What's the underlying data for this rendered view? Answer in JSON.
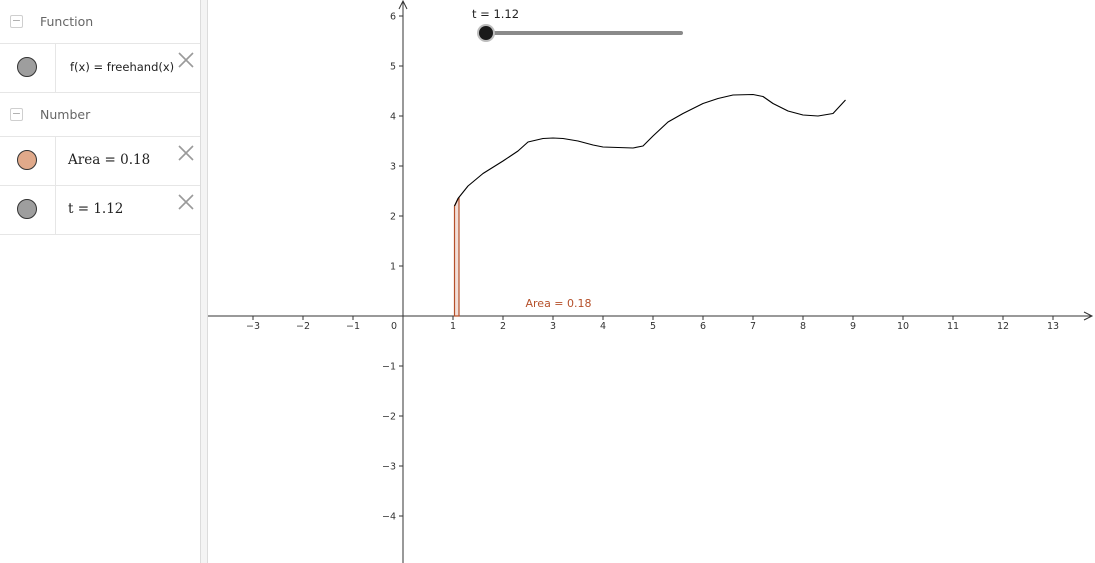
{
  "algebra": {
    "groups": [
      {
        "label": "Function",
        "collapse": "−"
      },
      {
        "label": "Number",
        "collapse": "−"
      }
    ],
    "rows": [
      {
        "text": "f(x) = freehand(x)",
        "color": "#9e9e9e"
      },
      {
        "text": "Area = 0.18",
        "color": "#e0a98a"
      },
      {
        "text": "t = 1.12",
        "color": "#9e9e9e"
      }
    ]
  },
  "slider": {
    "label": "t = 1.12",
    "value": 1.12,
    "min": 1,
    "max": 9
  },
  "chart_data": {
    "type": "line",
    "title": "",
    "xlabel": "",
    "ylabel": "",
    "xlim": [
      -3.9,
      13.8
    ],
    "ylim": [
      -4.9,
      6.3
    ],
    "x_ticks": [
      -3,
      -2,
      -1,
      0,
      1,
      2,
      3,
      4,
      5,
      6,
      7,
      8,
      9,
      10,
      11,
      12,
      13
    ],
    "y_ticks": [
      -4,
      -3,
      -2,
      -1,
      1,
      2,
      3,
      4,
      5,
      6
    ],
    "grid": false,
    "series": [
      {
        "color": "#000000",
        "x": [
          1.03,
          1.1,
          1.3,
          1.6,
          2.0,
          2.3,
          2.5,
          2.8,
          3.0,
          3.2,
          3.5,
          3.8,
          4.0,
          4.3,
          4.6,
          4.8,
          5.0,
          5.3,
          5.6,
          6.0,
          6.3,
          6.6,
          7.0,
          7.2,
          7.4,
          7.7,
          8.0,
          8.3,
          8.6,
          8.85
        ],
        "y": [
          2.2,
          2.35,
          2.6,
          2.85,
          3.1,
          3.3,
          3.48,
          3.55,
          3.56,
          3.55,
          3.5,
          3.42,
          3.38,
          3.37,
          3.36,
          3.4,
          3.6,
          3.88,
          4.05,
          4.25,
          4.35,
          4.42,
          4.43,
          4.39,
          4.25,
          4.1,
          4.02,
          4.0,
          4.05,
          4.32
        ]
      }
    ],
    "area": {
      "from": 1.03,
      "to": 1.12,
      "color": "#b5502a",
      "label": "Area = 0.18"
    }
  }
}
